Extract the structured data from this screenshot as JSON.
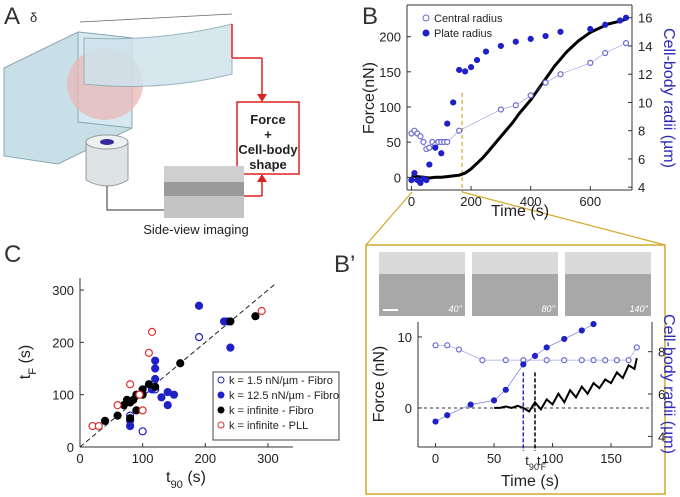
{
  "panel_labels": [
    "A",
    "B",
    "B’",
    "C"
  ],
  "diagram": {
    "delta": "δ",
    "box": [
      "Force",
      "+",
      "Cell-body",
      "shape"
    ],
    "caption": "Side-view imaging"
  },
  "micrographs": [
    "40''",
    "80''",
    "140''"
  ],
  "chart_data": [
    {
      "type": "line",
      "xlabel": "Time (s)",
      "ylabel": "Force(nN)",
      "y2label": "Cell-body radii (µm)",
      "xlim": [
        -15,
        740
      ],
      "xticks": [
        0,
        200,
        400,
        600
      ],
      "ylim": [
        -18,
        245
      ],
      "yticks": [
        0,
        50,
        100,
        150,
        200
      ],
      "y2lim": [
        3.8,
        16.9
      ],
      "y2ticks": [
        4,
        6,
        8,
        10,
        12,
        14,
        16
      ],
      "vline": {
        "x": 170,
        "color": "#d4a82a"
      },
      "series": [
        {
          "color": "#000000",
          "style": "line",
          "x": [
            0,
            20,
            40,
            60,
            80,
            100,
            120,
            140,
            160,
            180,
            200,
            220,
            240,
            260,
            280,
            300,
            320,
            340,
            360,
            380,
            400,
            420,
            440,
            460,
            480,
            500,
            520,
            540,
            560,
            580,
            600,
            620,
            640,
            660,
            680,
            700,
            720
          ],
          "values": [
            2,
            1,
            0,
            -1,
            0,
            0,
            1,
            2,
            3,
            6,
            12,
            20,
            28,
            38,
            48,
            58,
            68,
            78,
            90,
            100,
            110,
            122,
            134,
            146,
            158,
            168,
            178,
            186,
            194,
            200,
            206,
            210,
            214,
            218,
            220,
            222,
            225
          ]
        },
        {
          "name": "Central radius",
          "color": "#6a6ad8",
          "style": "open",
          "axis": "y2",
          "connect": true,
          "x": [
            0,
            10,
            20,
            30,
            40,
            50,
            60,
            70,
            80,
            90,
            100,
            110,
            120,
            160,
            300,
            350,
            400,
            450,
            500,
            600,
            650,
            720
          ],
          "values": [
            7.8,
            8,
            7.8,
            7.6,
            7.2,
            6.7,
            6.8,
            7.2,
            7,
            7.2,
            7.2,
            7.2,
            7.2,
            8,
            9.5,
            9.8,
            10.5,
            11.4,
            12,
            12.8,
            13.5,
            14.2
          ]
        },
        {
          "name": "Plate radius",
          "color": "#2020c8",
          "style": "filled",
          "axis": "y2",
          "connect": false,
          "x": [
            0,
            10,
            20,
            30,
            40,
            50,
            60,
            80,
            100,
            120,
            140,
            160,
            180,
            200,
            220,
            250,
            300,
            350,
            400,
            450,
            500,
            600,
            650,
            700,
            720
          ],
          "values": [
            4.5,
            5,
            4.5,
            4.3,
            4.6,
            4.5,
            5.6,
            6.8,
            6.4,
            8.5,
            10,
            12.3,
            12.2,
            12.5,
            13,
            13.6,
            14,
            14.3,
            14.5,
            14.7,
            15,
            15.2,
            15.5,
            15.8,
            16
          ]
        }
      ]
    },
    {
      "type": "line",
      "xlabel": "Time (s)",
      "ylabel": "Force (nN)",
      "y2label": "Cell-body radii (µm)",
      "xlim": [
        -15,
        185
      ],
      "xticks": [
        0,
        50,
        100,
        150
      ],
      "ylim": [
        -5.5,
        12.1
      ],
      "yticks": [
        0,
        10
      ],
      "y2lim": [
        3.5,
        9.4
      ],
      "y2ticks": [
        4,
        6,
        8
      ],
      "hline": 0,
      "markers": [
        {
          "x": 75,
          "label": [
            "t",
            "90"
          ],
          "color": "#2b2bb8"
        },
        {
          "x": 85,
          "label": [
            "t",
            "F"
          ],
          "color": "#000000"
        }
      ],
      "series": [
        {
          "color": "#000000",
          "style": "line",
          "x": [
            50,
            55,
            60,
            65,
            70,
            75,
            80,
            85,
            90,
            95,
            100,
            105,
            110,
            115,
            120,
            125,
            130,
            135,
            140,
            145,
            150,
            155,
            160,
            165,
            170,
            172
          ],
          "values": [
            0,
            0,
            0.2,
            0,
            0.3,
            0,
            -0.5,
            0.8,
            -0.2,
            1.2,
            0.5,
            2,
            0.8,
            2.5,
            1.5,
            3,
            2,
            3.5,
            2.8,
            4,
            3.5,
            5,
            4.2,
            6,
            5.5,
            7
          ]
        },
        {
          "color": "#6a6ad8",
          "style": "open",
          "axis": "y2",
          "connect": true,
          "x": [
            0,
            10,
            20,
            40,
            60,
            75,
            95,
            110,
            125,
            135,
            145,
            155,
            165,
            172
          ],
          "values": [
            8.3,
            8.3,
            8.1,
            7.6,
            7.6,
            7.6,
            7.6,
            7.6,
            7.6,
            7.6,
            7.6,
            7.6,
            7.6,
            8.2
          ]
        },
        {
          "color": "#2020c8",
          "style": "filled",
          "axis": "y2",
          "connect": true,
          "x": [
            0,
            10,
            30,
            50,
            60,
            75,
            85,
            95,
            110,
            125,
            135
          ],
          "values": [
            4.7,
            5,
            5.5,
            5.7,
            6.2,
            7.4,
            7.8,
            8.2,
            8.6,
            9,
            9.3
          ]
        }
      ]
    },
    {
      "type": "scatter",
      "xlabel": [
        "t",
        "90",
        " (s)"
      ],
      "ylabel": [
        "t",
        "F",
        " (s)"
      ],
      "xlim": [
        0,
        340
      ],
      "xticks": [
        0,
        100,
        200,
        300
      ],
      "ylim": [
        0,
        323
      ],
      "yticks": [
        0,
        100,
        200,
        300
      ],
      "diagonal": [
        0,
        310
      ],
      "series": [
        {
          "name": "k =  1.5  nN/µm - Fibro",
          "color": "#2020c8",
          "style": "open",
          "x": [
            80,
            100,
            105,
            190,
            235,
            120
          ],
          "values": [
            60,
            30,
            110,
            210,
            240,
            110
          ]
        },
        {
          "name": "k = 12.5 nN/µm - Fibro",
          "color": "#2020c8",
          "style": "filled",
          "x": [
            80,
            80,
            115,
            120,
            120,
            140,
            140,
            130,
            190,
            240,
            230,
            120,
            150
          ],
          "values": [
            40,
            50,
            110,
            150,
            130,
            105,
            80,
            95,
            270,
            190,
            240,
            165,
            100
          ]
        },
        {
          "name": "k =      infinite   - Fibro",
          "color": "#000000",
          "style": "filled",
          "x": [
            40,
            60,
            70,
            75,
            80,
            85,
            90,
            100,
            110,
            120,
            160,
            240,
            280,
            90,
            100,
            80
          ],
          "values": [
            50,
            60,
            80,
            90,
            85,
            90,
            100,
            110,
            120,
            115,
            160,
            240,
            250,
            70,
            100,
            55
          ]
        },
        {
          "name": "k =      infinite    - PLL",
          "color": "#e03030",
          "style": "open",
          "x": [
            20,
            30,
            60,
            80,
            100,
            110,
            115,
            290,
            95
          ],
          "values": [
            40,
            40,
            80,
            120,
            70,
            180,
            220,
            260,
            100
          ]
        }
      ]
    }
  ]
}
